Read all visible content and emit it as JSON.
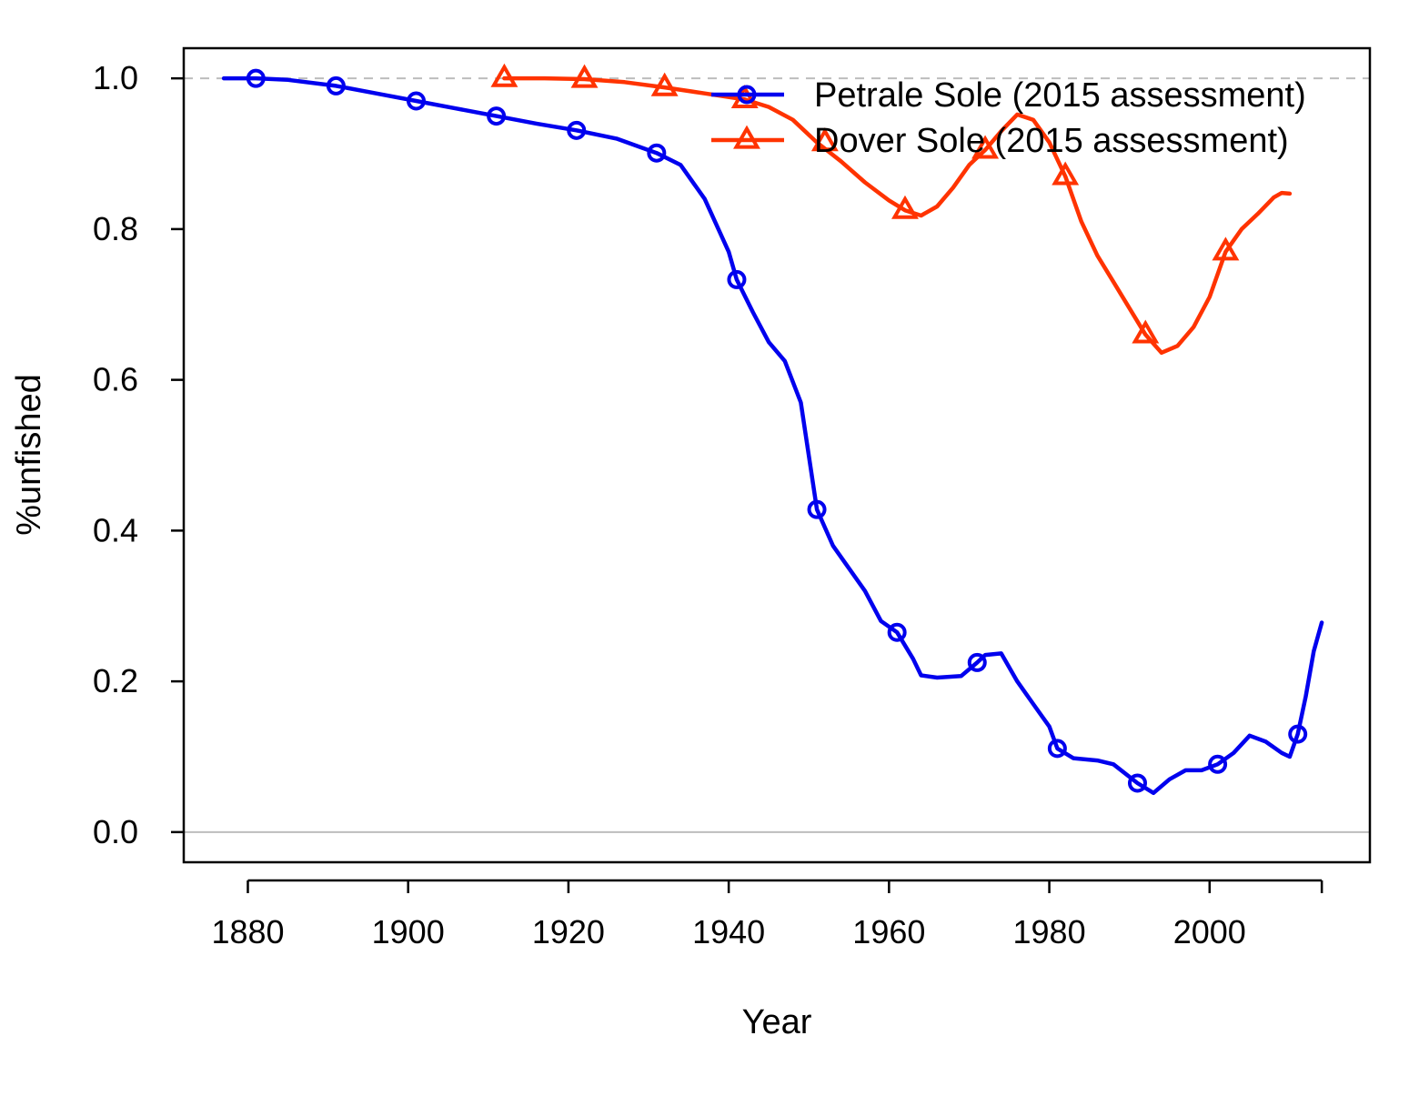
{
  "chart_data": {
    "type": "line",
    "xlabel": "Year",
    "ylabel": "%unfished",
    "xlim": [
      1872,
      2020
    ],
    "ylim": [
      -0.04,
      1.04
    ],
    "x_ticks": [
      "1880",
      "1900",
      "1920",
      "1940",
      "1960",
      "1980",
      "2000"
    ],
    "y_ticks": [
      "0.0",
      "0.2",
      "0.4",
      "0.6",
      "0.8",
      "1.0"
    ],
    "reference_lines": [
      {
        "y": 1.0,
        "style": "dashed",
        "color": "#bdbdbd"
      },
      {
        "y": 0.0,
        "style": "solid",
        "color": "#bdbdbd"
      }
    ],
    "legend": {
      "placement": "top-right"
    },
    "series": [
      {
        "name": "Petrale Sole (2015 assessment)",
        "color": "#0000ee",
        "marker": "circle",
        "line": [
          [
            1877,
            1.0
          ],
          [
            1881,
            1.0
          ],
          [
            1885,
            0.998
          ],
          [
            1891,
            0.99
          ],
          [
            1896,
            0.98
          ],
          [
            1901,
            0.97
          ],
          [
            1906,
            0.96
          ],
          [
            1911,
            0.95
          ],
          [
            1916,
            0.94
          ],
          [
            1921,
            0.931
          ],
          [
            1926,
            0.92
          ],
          [
            1931,
            0.901
          ],
          [
            1934,
            0.885
          ],
          [
            1937,
            0.84
          ],
          [
            1940,
            0.77
          ],
          [
            1941,
            0.733
          ],
          [
            1943,
            0.69
          ],
          [
            1945,
            0.65
          ],
          [
            1947,
            0.625
          ],
          [
            1949,
            0.57
          ],
          [
            1951,
            0.428
          ],
          [
            1953,
            0.38
          ],
          [
            1955,
            0.35
          ],
          [
            1957,
            0.32
          ],
          [
            1959,
            0.28
          ],
          [
            1961,
            0.265
          ],
          [
            1963,
            0.23
          ],
          [
            1964,
            0.208
          ],
          [
            1966,
            0.205
          ],
          [
            1969,
            0.207
          ],
          [
            1971,
            0.225
          ],
          [
            1972,
            0.235
          ],
          [
            1974,
            0.237
          ],
          [
            1976,
            0.2
          ],
          [
            1978,
            0.17
          ],
          [
            1980,
            0.14
          ],
          [
            1981,
            0.111
          ],
          [
            1983,
            0.098
          ],
          [
            1986,
            0.095
          ],
          [
            1988,
            0.09
          ],
          [
            1991,
            0.065
          ],
          [
            1993,
            0.052
          ],
          [
            1995,
            0.07
          ],
          [
            1997,
            0.082
          ],
          [
            1999,
            0.082
          ],
          [
            2001,
            0.09
          ],
          [
            2003,
            0.105
          ],
          [
            2005,
            0.128
          ],
          [
            2007,
            0.12
          ],
          [
            2009,
            0.105
          ],
          [
            2010,
            0.1
          ],
          [
            2011,
            0.13
          ],
          [
            2012,
            0.18
          ],
          [
            2013,
            0.24
          ],
          [
            2014,
            0.278
          ]
        ],
        "markers": [
          [
            1881,
            1.0
          ],
          [
            1891,
            0.99
          ],
          [
            1901,
            0.97
          ],
          [
            1911,
            0.95
          ],
          [
            1921,
            0.931
          ],
          [
            1931,
            0.901
          ],
          [
            1941,
            0.733
          ],
          [
            1951,
            0.428
          ],
          [
            1961,
            0.265
          ],
          [
            1971,
            0.225
          ],
          [
            1981,
            0.111
          ],
          [
            1991,
            0.065
          ],
          [
            2001,
            0.09
          ],
          [
            2011,
            0.13
          ]
        ]
      },
      {
        "name": "Dover Sole (2015 assessment)",
        "color": "#ff3300",
        "marker": "triangle",
        "line": [
          [
            1912,
            1.0
          ],
          [
            1917,
            1.0
          ],
          [
            1922,
            0.999
          ],
          [
            1927,
            0.995
          ],
          [
            1932,
            0.988
          ],
          [
            1937,
            0.98
          ],
          [
            1942,
            0.972
          ],
          [
            1945,
            0.962
          ],
          [
            1948,
            0.945
          ],
          [
            1951,
            0.915
          ],
          [
            1954,
            0.89
          ],
          [
            1957,
            0.862
          ],
          [
            1960,
            0.838
          ],
          [
            1962,
            0.825
          ],
          [
            1964,
            0.818
          ],
          [
            1966,
            0.83
          ],
          [
            1968,
            0.855
          ],
          [
            1970,
            0.885
          ],
          [
            1972,
            0.905
          ],
          [
            1974,
            0.93
          ],
          [
            1976,
            0.952
          ],
          [
            1978,
            0.945
          ],
          [
            1980,
            0.915
          ],
          [
            1982,
            0.87
          ],
          [
            1984,
            0.81
          ],
          [
            1986,
            0.765
          ],
          [
            1988,
            0.73
          ],
          [
            1990,
            0.695
          ],
          [
            1992,
            0.66
          ],
          [
            1994,
            0.636
          ],
          [
            1996,
            0.645
          ],
          [
            1998,
            0.67
          ],
          [
            2000,
            0.71
          ],
          [
            2002,
            0.77
          ],
          [
            2004,
            0.8
          ],
          [
            2006,
            0.82
          ],
          [
            2008,
            0.842
          ],
          [
            2009,
            0.848
          ],
          [
            2010,
            0.847
          ]
        ],
        "markers": [
          [
            1912,
            1.0
          ],
          [
            1922,
            0.999
          ],
          [
            1932,
            0.988
          ],
          [
            1942,
            0.972
          ],
          [
            1952,
            0.915
          ],
          [
            1962,
            0.825
          ],
          [
            1972,
            0.905
          ],
          [
            1982,
            0.87
          ],
          [
            1992,
            0.66
          ],
          [
            2002,
            0.77
          ]
        ]
      }
    ]
  }
}
